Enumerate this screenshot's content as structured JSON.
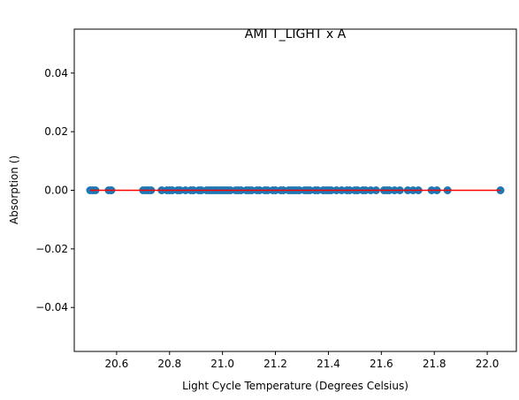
{
  "chart_data": {
    "type": "scatter",
    "title": "AMI T_LIGHT x A",
    "xlabel": "Light Cycle Temperature (Degrees Celsius)",
    "ylabel": "Absorption ()",
    "xlim": [
      20.44,
      22.11
    ],
    "ylim": [
      -0.055,
      0.055
    ],
    "xticks": [
      20.6,
      20.8,
      21.0,
      21.2,
      21.4,
      21.6,
      21.8,
      22.0
    ],
    "yticks": [
      -0.04,
      -0.02,
      0.0,
      0.02,
      0.04
    ],
    "xtick_labels": [
      "20.6",
      "20.8",
      "21.0",
      "21.2",
      "21.4",
      "21.6",
      "21.8",
      "22.0"
    ],
    "ytick_labels": [
      "−0.04",
      "−0.02",
      "0.00",
      "0.02",
      "0.04"
    ],
    "grid": false,
    "colors": {
      "points": "#1f77b4",
      "fit_line": "#ff0000",
      "axes": "#000000"
    },
    "series": [
      {
        "kind": "points",
        "x": [
          20.5,
          20.51,
          20.52,
          20.57,
          20.58,
          20.7,
          20.71,
          20.72,
          20.73,
          20.77,
          20.79,
          20.8,
          20.81,
          20.83,
          20.84,
          20.86,
          20.88,
          20.89,
          20.91,
          20.92,
          20.94,
          20.95,
          20.96,
          20.97,
          20.98,
          20.99,
          21.0,
          21.01,
          21.02,
          21.03,
          21.05,
          21.06,
          21.07,
          21.09,
          21.1,
          21.11,
          21.13,
          21.14,
          21.16,
          21.17,
          21.19,
          21.2,
          21.22,
          21.23,
          21.25,
          21.26,
          21.27,
          21.28,
          21.29,
          21.31,
          21.32,
          21.33,
          21.35,
          21.36,
          21.38,
          21.39,
          21.4,
          21.41,
          21.43,
          21.45,
          21.47,
          21.48,
          21.5,
          21.51,
          21.53,
          21.54,
          21.56,
          21.58,
          21.61,
          21.62,
          21.63,
          21.65,
          21.67,
          21.7,
          21.72,
          21.74,
          21.79,
          21.81,
          21.85,
          22.05
        ],
        "y": [
          0,
          0,
          0,
          0,
          0,
          0,
          0,
          0,
          0,
          0,
          0,
          0,
          0,
          0,
          0,
          0,
          0,
          0,
          0,
          0,
          0,
          0,
          0,
          0,
          0,
          0,
          0,
          0,
          0,
          0,
          0,
          0,
          0,
          0,
          0,
          0,
          0,
          0,
          0,
          0,
          0,
          0,
          0,
          0,
          0,
          0,
          0,
          0,
          0,
          0,
          0,
          0,
          0,
          0,
          0,
          0,
          0,
          0,
          0,
          0,
          0,
          0,
          0,
          0,
          0,
          0,
          0,
          0,
          0,
          0,
          0,
          0,
          0,
          0,
          0,
          0,
          0,
          0,
          0,
          0
        ]
      },
      {
        "kind": "line",
        "x": [
          20.5,
          22.05
        ],
        "y": [
          0,
          0
        ]
      }
    ]
  }
}
